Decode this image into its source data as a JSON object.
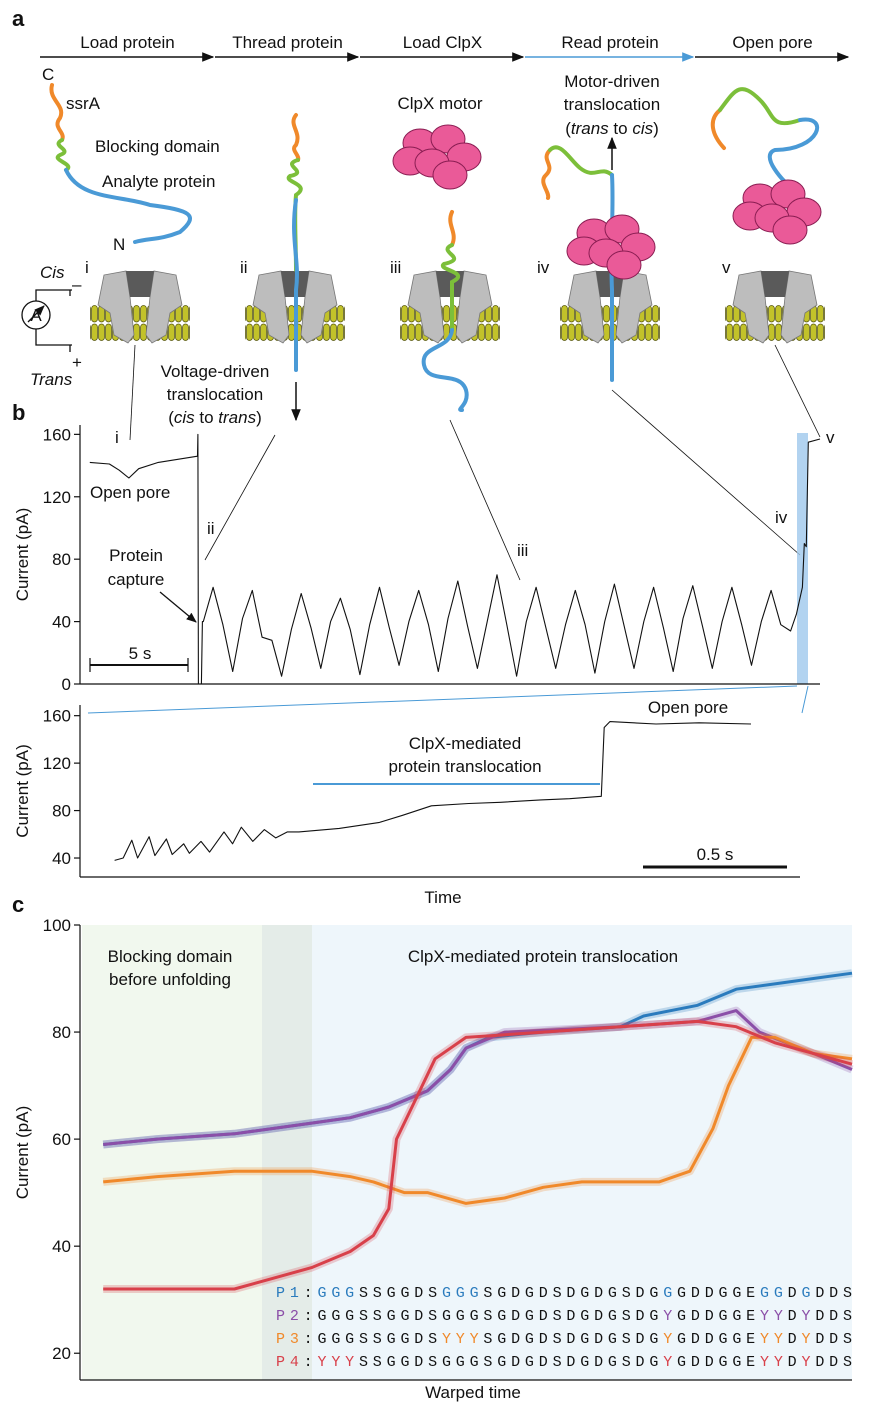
{
  "panel_labels": [
    "a",
    "b",
    "c"
  ],
  "diagram": {
    "steps": [
      {
        "label": "Load protein",
        "color": "#111111"
      },
      {
        "label": "Thread protein",
        "color": "#111111"
      },
      {
        "label": "Load ClpX",
        "color": "#111111"
      },
      {
        "label": "Read protein",
        "color": "#4a9ad6"
      },
      {
        "label": "Open pore",
        "color": "#111111"
      }
    ],
    "stage_labels": [
      "i",
      "ii",
      "iii",
      "iv",
      "v"
    ],
    "c_terminus": "C",
    "ssra": "ssrA",
    "blocking_domain": "Blocking domain",
    "analyte": "Analyte protein",
    "n_terminus": "N",
    "cis": "Cis",
    "trans": "Trans",
    "ammeter": "A",
    "minus": "–",
    "plus": "+",
    "clpx": "ClpX motor",
    "motor_lines": [
      "Motor-driven",
      "translocation"
    ],
    "motor_paren": [
      "(",
      "trans",
      " to ",
      "cis",
      ")"
    ],
    "voltage_lines": [
      "Voltage-driven",
      "translocation"
    ],
    "voltage_paren": [
      "(",
      "cis",
      " to ",
      "trans",
      ")"
    ]
  },
  "chart_data": [
    {
      "type": "line",
      "ylabel": "Current (pA)",
      "ylim": [
        0,
        166
      ],
      "yticks": [
        0,
        40,
        80,
        120,
        160
      ],
      "xlim": [
        0,
        37.8
      ],
      "color": "#111111",
      "annotations": {
        "i": "i",
        "open_pore": "Open pore",
        "ii": "ii",
        "capture": [
          "Protein",
          "capture"
        ],
        "iii": "iii",
        "iv": "iv",
        "v": "v",
        "scale": "5 s"
      },
      "x": [
        0.5,
        1.5,
        2.0,
        2.5,
        3.0,
        4.0,
        5.0,
        6.0,
        6.02,
        6.05,
        6.2,
        6.25,
        6.3,
        6.8,
        7.3,
        7.8,
        8.3,
        8.8,
        9.3,
        9.8,
        10.3,
        10.8,
        11.3,
        11.8,
        12.3,
        12.8,
        13.3,
        13.8,
        14.3,
        14.8,
        15.3,
        15.8,
        16.3,
        16.8,
        17.3,
        17.8,
        18.3,
        18.8,
        19.3,
        19.8,
        20.3,
        20.8,
        21.3,
        21.8,
        22.3,
        22.8,
        23.3,
        23.8,
        24.3,
        24.8,
        25.3,
        25.8,
        26.3,
        26.8,
        27.3,
        27.8,
        28.3,
        28.8,
        29.3,
        29.8,
        30.3,
        30.8,
        31.3,
        31.8,
        32.3,
        32.8,
        33.3,
        33.8,
        34.3,
        34.8,
        35.3,
        35.8,
        36.3,
        36.6,
        36.9,
        37.0,
        37.1,
        37.2,
        37.8
      ],
      "values": [
        142,
        141,
        137,
        132,
        138,
        142,
        144,
        146,
        160,
        0,
        0,
        40,
        40,
        62,
        38,
        8,
        42,
        60,
        30,
        28,
        5,
        35,
        58,
        36,
        10,
        40,
        55,
        35,
        6,
        38,
        62,
        36,
        12,
        40,
        60,
        38,
        8,
        42,
        66,
        37,
        10,
        40,
        70,
        38,
        5,
        40,
        62,
        36,
        10,
        38,
        60,
        38,
        7,
        40,
        64,
        37,
        10,
        40,
        62,
        36,
        8,
        42,
        63,
        37,
        10,
        40,
        62,
        38,
        12,
        40,
        60,
        38,
        34,
        45,
        62,
        90,
        88,
        155,
        157
      ]
    },
    {
      "type": "line",
      "ylabel": "Current (pA)",
      "xlabel": "Time",
      "ylim": [
        24,
        169
      ],
      "yticks": [
        40,
        80,
        120,
        160
      ],
      "xlim": [
        0,
        2.5
      ],
      "color": "#111111",
      "annotations": {
        "translocation": [
          "ClpX-mediated",
          "protein translocation"
        ],
        "open_pore": "Open pore",
        "scale": "0.5 s"
      },
      "x": [
        0.12,
        0.15,
        0.18,
        0.2,
        0.24,
        0.26,
        0.3,
        0.32,
        0.36,
        0.38,
        0.42,
        0.45,
        0.5,
        0.53,
        0.56,
        0.6,
        0.64,
        0.68,
        0.72,
        0.76,
        0.9,
        1.04,
        1.12,
        1.22,
        1.35,
        1.46,
        1.6,
        1.7,
        1.81,
        1.82,
        1.84,
        2.0,
        2.15,
        2.33
      ],
      "values": [
        38,
        40,
        55,
        40,
        58,
        42,
        56,
        43,
        52,
        44,
        54,
        45,
        62,
        52,
        66,
        54,
        64,
        57,
        62,
        62,
        65,
        70,
        76,
        84,
        86,
        87,
        89,
        90,
        92,
        150,
        155,
        153,
        154,
        153
      ]
    },
    {
      "type": "line",
      "ylabel": "Current (pA)",
      "xlabel": "Warped time",
      "ylim": [
        15,
        100
      ],
      "yticks": [
        20,
        40,
        60,
        80,
        100
      ],
      "xlim": [
        0,
        100
      ],
      "regions": [
        "Blocking domain before unfolding",
        "ClpX-mediated protein translocation"
      ],
      "series": [
        {
          "name": "P1",
          "color": "#2a7bbd",
          "x": [
            3,
            10,
            20,
            30,
            35,
            40,
            45,
            48,
            50,
            53,
            60,
            70,
            73,
            80,
            85,
            90,
            95,
            100
          ],
          "values": [
            59,
            60,
            61,
            63,
            64,
            66,
            69,
            73,
            77,
            79,
            80,
            81,
            83,
            85,
            88,
            89,
            90,
            91
          ]
        },
        {
          "name": "P2",
          "color": "#8b4fa8",
          "x": [
            3,
            10,
            20,
            30,
            35,
            40,
            45,
            48,
            50,
            55,
            70,
            80,
            85,
            88,
            95,
            100
          ],
          "values": [
            59,
            60,
            61,
            63,
            64,
            66,
            69,
            73,
            77,
            80,
            81,
            82,
            84,
            80,
            76,
            73
          ]
        },
        {
          "name": "P3",
          "color": "#f0892a",
          "x": [
            3,
            10,
            20,
            30,
            35,
            38,
            42,
            45,
            50,
            55,
            60,
            65,
            75,
            79,
            82,
            84,
            87,
            90,
            95,
            100
          ],
          "values": [
            52,
            53,
            54,
            54,
            53,
            52,
            50,
            50,
            48,
            49,
            51,
            52,
            52,
            54,
            62,
            70,
            79,
            79,
            76,
            75
          ]
        },
        {
          "name": "P4",
          "color": "#d8404a",
          "x": [
            3,
            10,
            20,
            25,
            30,
            35,
            38,
            40,
            41,
            43,
            46,
            50,
            60,
            70,
            80,
            85,
            90,
            100
          ],
          "values": [
            32,
            32,
            32,
            34,
            36,
            39,
            42,
            47,
            60,
            66,
            75,
            79,
            80,
            81,
            82,
            81,
            78,
            74
          ]
        }
      ],
      "sequences": [
        [
          {
            "text": "P1",
            "color": "#2a7bbd"
          },
          {
            "text": ":",
            "color": "#111111"
          },
          {
            "text": "GGG",
            "color": "#2a7bbd"
          },
          {
            "text": "SSGGDS",
            "color": "#111111"
          },
          {
            "text": "GGG",
            "color": "#2a7bbd"
          },
          {
            "text": "SGDGDSDGDGSDG",
            "color": "#111111"
          },
          {
            "text": "G",
            "color": "#2a7bbd"
          },
          {
            "text": "GDDGGE",
            "color": "#111111"
          },
          {
            "text": "GG",
            "color": "#2a7bbd"
          },
          {
            "text": "D",
            "color": "#111111"
          },
          {
            "text": "G",
            "color": "#2a7bbd"
          },
          {
            "text": "DDS",
            "color": "#111111"
          }
        ],
        [
          {
            "text": "P2",
            "color": "#8b4fa8"
          },
          {
            "text": ":GGGSSGGDSGGGSGDGDSDGDGSDG",
            "color": "#111111"
          },
          {
            "text": "Y",
            "color": "#8b4fa8"
          },
          {
            "text": "GDDGGE",
            "color": "#111111"
          },
          {
            "text": "YY",
            "color": "#8b4fa8"
          },
          {
            "text": "D",
            "color": "#111111"
          },
          {
            "text": "Y",
            "color": "#8b4fa8"
          },
          {
            "text": "DDS",
            "color": "#111111"
          }
        ],
        [
          {
            "text": "P3",
            "color": "#f0892a"
          },
          {
            "text": ":GGGSSGGDS",
            "color": "#111111"
          },
          {
            "text": "YYY",
            "color": "#f0892a"
          },
          {
            "text": "SGDGDSDGDGSDG",
            "color": "#111111"
          },
          {
            "text": "Y",
            "color": "#f0892a"
          },
          {
            "text": "GDDGGE",
            "color": "#111111"
          },
          {
            "text": "YY",
            "color": "#f0892a"
          },
          {
            "text": "D",
            "color": "#111111"
          },
          {
            "text": "Y",
            "color": "#f0892a"
          },
          {
            "text": "DDS",
            "color": "#111111"
          }
        ],
        [
          {
            "text": "P4",
            "color": "#d8404a"
          },
          {
            "text": ":",
            "color": "#111111"
          },
          {
            "text": "YYY",
            "color": "#d8404a"
          },
          {
            "text": "SSGGDSGGGSGDGDSDGDGSDG",
            "color": "#111111"
          },
          {
            "text": "Y",
            "color": "#d8404a"
          },
          {
            "text": "GDDGGE",
            "color": "#111111"
          },
          {
            "text": "YY",
            "color": "#d8404a"
          },
          {
            "text": "D",
            "color": "#111111"
          },
          {
            "text": "Y",
            "color": "#d8404a"
          },
          {
            "text": "DDS",
            "color": "#111111"
          }
        ]
      ]
    }
  ]
}
